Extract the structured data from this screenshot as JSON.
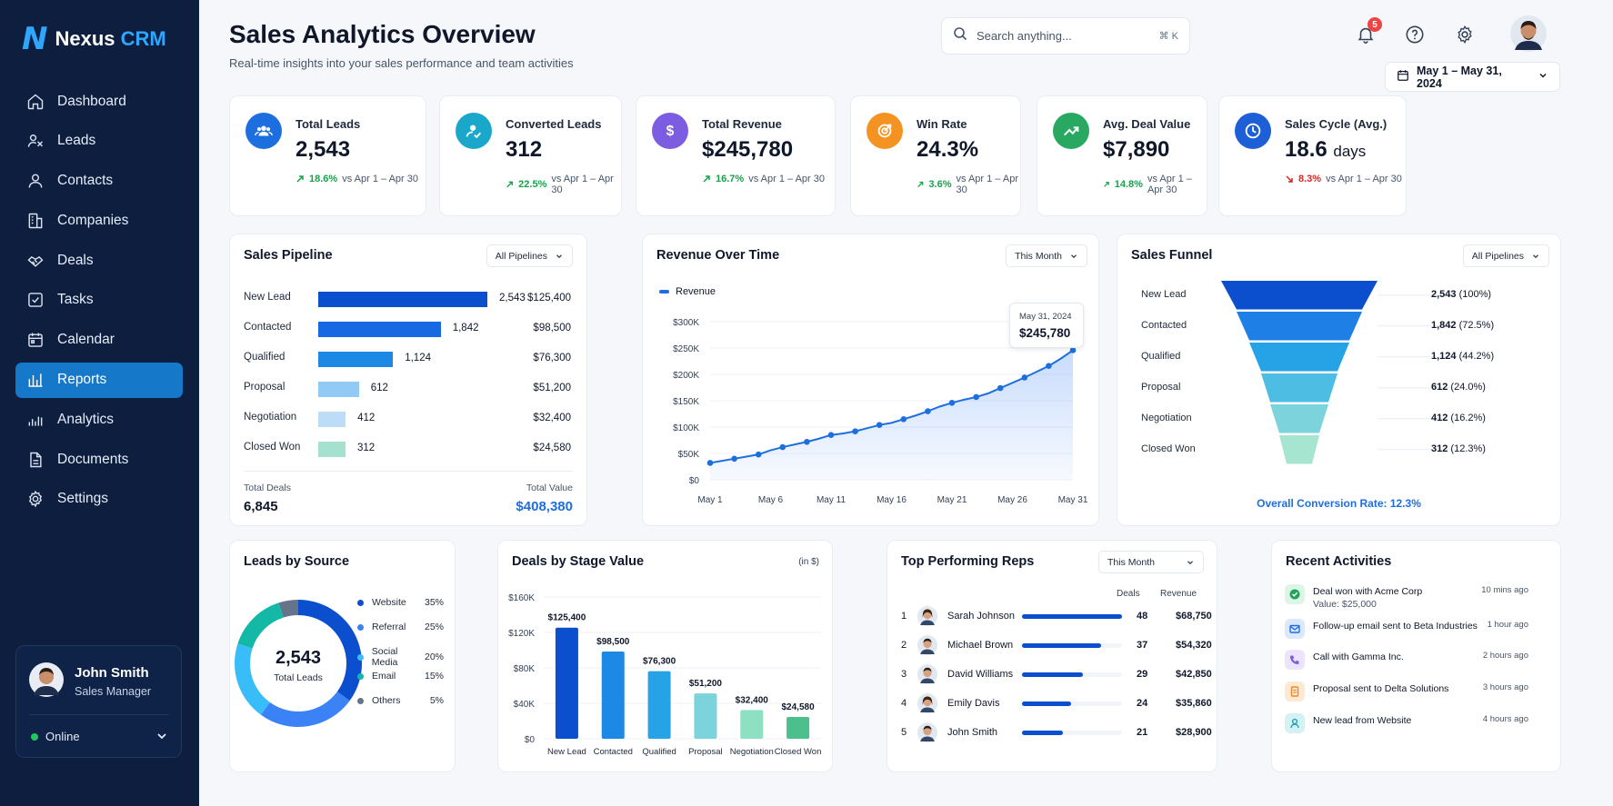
{
  "app": {
    "logo_letter": "N",
    "name": "Nexus",
    "name_accent": "CRM"
  },
  "nav": [
    {
      "label": "Dashboard",
      "icon": "home-icon"
    },
    {
      "label": "Leads",
      "icon": "leads-icon"
    },
    {
      "label": "Contacts",
      "icon": "user-icon"
    },
    {
      "label": "Companies",
      "icon": "building-icon"
    },
    {
      "label": "Deals",
      "icon": "handshake-icon"
    },
    {
      "label": "Tasks",
      "icon": "checkbox-icon"
    },
    {
      "label": "Calendar",
      "icon": "calendar-icon"
    },
    {
      "label": "Reports",
      "icon": "bar-chart-icon",
      "active": true
    },
    {
      "label": "Analytics",
      "icon": "analytics-icon"
    },
    {
      "label": "Documents",
      "icon": "document-icon"
    },
    {
      "label": "Settings",
      "icon": "gear-icon"
    }
  ],
  "user": {
    "name": "John Smith",
    "role": "Sales Manager",
    "status": "Online"
  },
  "header": {
    "title": "Sales Analytics Overview",
    "subtitle": "Real-time insights into your sales performance and team activities",
    "search_placeholder": "Search anything...",
    "search_shortcut": "⌘ K",
    "notification_count": "5",
    "date_range": "May 1 – May 31, 2024"
  },
  "kpis": [
    {
      "label": "Total Leads",
      "value": "2,543",
      "unit": "",
      "change": "18.6%",
      "dir": "up",
      "compare": "vs Apr 1 – Apr 30",
      "color": "#1d6fe0"
    },
    {
      "label": "Converted Leads",
      "value": "312",
      "unit": "",
      "change": "22.5%",
      "dir": "up",
      "compare": "vs Apr 1 – Apr 30",
      "color": "#19a8c9"
    },
    {
      "label": "Total Revenue",
      "value": "$245,780",
      "unit": "",
      "change": "16.7%",
      "dir": "up",
      "compare": "vs Apr 1 – Apr 30",
      "color": "#7c5ce0"
    },
    {
      "label": "Win Rate",
      "value": "24.3%",
      "unit": "",
      "change": "3.6%",
      "dir": "up",
      "compare": "vs Apr 1 – Apr 30",
      "color": "#f59322"
    },
    {
      "label": "Avg. Deal Value",
      "value": "$7,890",
      "unit": "",
      "change": "14.8%",
      "dir": "up",
      "compare": "vs Apr 1 – Apr 30",
      "color": "#28a861"
    },
    {
      "label": "Sales Cycle (Avg.)",
      "value": "18.6",
      "unit": "days",
      "change": "8.3%",
      "dir": "down",
      "compare": "vs Apr 1 – Apr 30",
      "color": "#1d5fd6"
    }
  ],
  "pipeline": {
    "title": "Sales Pipeline",
    "filter": "All Pipelines",
    "stages": [
      {
        "stage": "New Lead",
        "count": "2,543",
        "amount": "$125,400",
        "n": 2543,
        "color": "#0b4fcf"
      },
      {
        "stage": "Contacted",
        "count": "1,842",
        "amount": "$98,500",
        "n": 1842,
        "color": "#1769e3"
      },
      {
        "stage": "Qualified",
        "count": "1,124",
        "amount": "$76,300",
        "n": 1124,
        "color": "#1e88e5"
      },
      {
        "stage": "Proposal",
        "count": "612",
        "amount": "$51,200",
        "n": 612,
        "color": "#90caf5"
      },
      {
        "stage": "Negotiation",
        "count": "412",
        "amount": "$32,400",
        "n": 412,
        "color": "#bcdcf8"
      },
      {
        "stage": "Closed Won",
        "count": "312",
        "amount": "$24,580",
        "n": 312,
        "color": "#a4e1cf"
      }
    ],
    "total_deals_label": "Total Deals",
    "total_deals": "6,845",
    "total_value_label": "Total Value",
    "total_value": "$408,380"
  },
  "revenue": {
    "title": "Revenue Over Time",
    "filter": "This Month",
    "legend": "Revenue",
    "tooltip_date": "May 31, 2024",
    "tooltip_value": "$245,780"
  },
  "funnel": {
    "title": "Sales Funnel",
    "filter": "All Pipelines",
    "stages": [
      {
        "stage": "New Lead",
        "count": "2,543",
        "pct": "(100%)",
        "color": "#0b4fcf"
      },
      {
        "stage": "Contacted",
        "count": "1,842",
        "pct": "(72.5%)",
        "color": "#1e7fe6"
      },
      {
        "stage": "Qualified",
        "count": "1,124",
        "pct": "(44.2%)",
        "color": "#25a3e6"
      },
      {
        "stage": "Proposal",
        "count": "612",
        "pct": "(24.0%)",
        "color": "#4ebde3"
      },
      {
        "stage": "Negotiation",
        "count": "412",
        "pct": "(16.2%)",
        "color": "#7dd3dc"
      },
      {
        "stage": "Closed Won",
        "count": "312",
        "pct": "(12.3%)",
        "color": "#a6e5cf"
      }
    ],
    "overall": "Overall Conversion Rate: 12.3%"
  },
  "leads_source": {
    "title": "Leads by Source",
    "center_value": "2,543",
    "center_label": "Total Leads"
  },
  "stage_value": {
    "title": "Deals by Stage Value",
    "unit_note": "(in $)"
  },
  "reps": {
    "title": "Top Performing Reps",
    "filter": "This Month",
    "col_deals": "Deals",
    "col_revenue": "Revenue",
    "rows": [
      {
        "rank": "1",
        "name": "Sarah Johnson",
        "deals": "48",
        "revenue": "$68,750",
        "share": 1.0,
        "gender": "f"
      },
      {
        "rank": "2",
        "name": "Michael Brown",
        "deals": "37",
        "revenue": "$54,320",
        "share": 0.79,
        "gender": "m"
      },
      {
        "rank": "3",
        "name": "David Williams",
        "deals": "29",
        "revenue": "$42,850",
        "share": 0.61,
        "gender": "m"
      },
      {
        "rank": "4",
        "name": "Emily Davis",
        "deals": "24",
        "revenue": "$35,860",
        "share": 0.49,
        "gender": "f"
      },
      {
        "rank": "5",
        "name": "John Smith",
        "deals": "21",
        "revenue": "$28,900",
        "share": 0.41,
        "gender": "m"
      }
    ]
  },
  "activities": {
    "title": "Recent Activities",
    "items": [
      {
        "text": "Deal won with Acme Corp",
        "sub": "Value: $25,000",
        "time": "10 mins ago",
        "color": "#22a55a",
        "bg": "#dcf5e6",
        "icon": "check-icon"
      },
      {
        "text": "Follow-up email sent to Beta Industries",
        "sub": "",
        "time": "1 hour ago",
        "color": "#1d6fe0",
        "bg": "#dbe8fc",
        "icon": "mail-icon"
      },
      {
        "text": "Call with Gamma Inc.",
        "sub": "",
        "time": "2 hours ago",
        "color": "#7c5ce0",
        "bg": "#ebe4fb",
        "icon": "phone-icon"
      },
      {
        "text": "Proposal sent to Delta Solutions",
        "sub": "",
        "time": "3 hours ago",
        "color": "#f08a24",
        "bg": "#fde9d4",
        "icon": "file-icon"
      },
      {
        "text": "New lead from Website",
        "sub": "",
        "time": "4 hours ago",
        "color": "#19a3b8",
        "bg": "#d6f1f4",
        "icon": "user-plus-icon"
      }
    ]
  },
  "chart_data": [
    {
      "type": "bar",
      "title": "Sales Pipeline",
      "categories": [
        "New Lead",
        "Contacted",
        "Qualified",
        "Proposal",
        "Negotiation",
        "Closed Won"
      ],
      "values": [
        2543,
        1842,
        1124,
        612,
        412,
        312
      ],
      "amounts": [
        125400,
        98500,
        76300,
        51200,
        32400,
        24580
      ]
    },
    {
      "type": "area",
      "title": "Revenue Over Time",
      "x": [
        "May 1",
        "May 2",
        "May 3",
        "May 4",
        "May 5",
        "May 6",
        "May 7",
        "May 8",
        "May 9",
        "May 10",
        "May 11",
        "May 12",
        "May 13",
        "May 14",
        "May 15",
        "May 16",
        "May 17",
        "May 18",
        "May 19",
        "May 20",
        "May 21",
        "May 22",
        "May 23",
        "May 24",
        "May 25",
        "May 26",
        "May 27",
        "May 28",
        "May 29",
        "May 30",
        "May 31"
      ],
      "xticks": [
        "May 1",
        "May 6",
        "May 11",
        "May 16",
        "May 21",
        "May 26",
        "May 31"
      ],
      "series": [
        {
          "name": "Revenue",
          "values": [
            32000,
            36000,
            40000,
            44000,
            48000,
            56000,
            62000,
            67000,
            72000,
            78000,
            85000,
            88000,
            92000,
            98000,
            104000,
            108000,
            115000,
            122000,
            130000,
            139000,
            146000,
            152000,
            157000,
            164000,
            174000,
            184000,
            194000,
            205000,
            216000,
            230000,
            245780
          ]
        }
      ],
      "yticks": [
        "$0",
        "$50K",
        "$100K",
        "$150K",
        "$200K",
        "$250K",
        "$300K"
      ],
      "ylim": [
        0,
        300000
      ],
      "legend": "top-left"
    },
    {
      "type": "funnel",
      "title": "Sales Funnel",
      "categories": [
        "New Lead",
        "Contacted",
        "Qualified",
        "Proposal",
        "Negotiation",
        "Closed Won"
      ],
      "values": [
        2543,
        1842,
        1124,
        612,
        412,
        312
      ],
      "percent": [
        100,
        72.5,
        44.2,
        24.0,
        16.2,
        12.3
      ]
    },
    {
      "type": "pie",
      "title": "Leads by Source",
      "categories": [
        "Website",
        "Referral",
        "Social Media",
        "Email",
        "Others"
      ],
      "values": [
        35,
        25,
        20,
        15,
        5
      ],
      "labels": [
        "35%",
        "25%",
        "20%",
        "15%",
        "5%"
      ],
      "colors": [
        "#0b4fcf",
        "#3b82f6",
        "#38bdf8",
        "#14b8a6",
        "#64748b"
      ]
    },
    {
      "type": "bar",
      "title": "Deals by Stage Value",
      "categories": [
        "New Lead",
        "Contacted",
        "Qualified",
        "Proposal",
        "Negotiation",
        "Closed Won"
      ],
      "values": [
        125400,
        98500,
        76300,
        51200,
        32400,
        24580
      ],
      "labels": [
        "$125,400",
        "$98,500",
        "$76,300",
        "$51,200",
        "$32,400",
        "$24,580"
      ],
      "yticks": [
        "$0",
        "$40K",
        "$80K",
        "$120K",
        "$160K"
      ],
      "ylim": [
        0,
        160000
      ],
      "colors": [
        "#0b4fcf",
        "#1e88e5",
        "#25a3e6",
        "#7dd3dc",
        "#8ee0c3",
        "#4cc08c"
      ]
    }
  ]
}
